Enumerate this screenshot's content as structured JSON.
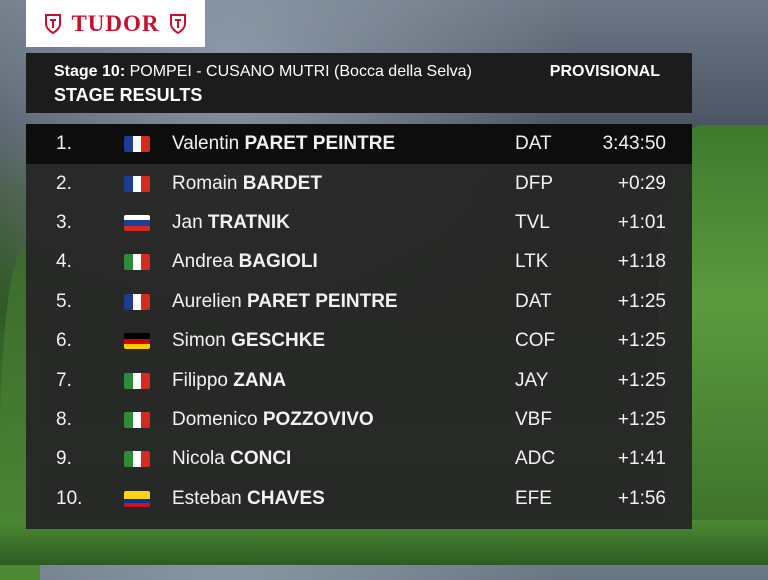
{
  "brand": {
    "wordmark": "TUDOR",
    "shield_color": "#c8102e"
  },
  "header": {
    "stage_label": "Stage 10:",
    "route": "POMPEI - CUSANO MUTRI (Bocca della Selva)",
    "status": "PROVISIONAL",
    "title": "STAGE RESULTS"
  },
  "results": [
    {
      "pos": "1.",
      "first": "Valentin",
      "last": "PARET PEINTRE",
      "team": "DAT",
      "time": "3:43:50",
      "flag": {
        "dir": "v",
        "colors": [
          "#1d3c8f",
          "#ffffff",
          "#d52b1e"
        ]
      }
    },
    {
      "pos": "2.",
      "first": "Romain",
      "last": "BARDET",
      "team": "DFP",
      "time": "+0:29",
      "flag": {
        "dir": "v",
        "colors": [
          "#1d3c8f",
          "#ffffff",
          "#d52b1e"
        ]
      }
    },
    {
      "pos": "3.",
      "first": "Jan",
      "last": "TRATNIK",
      "team": "TVL",
      "time": "+1:01",
      "flag": {
        "dir": "h",
        "colors": [
          "#ffffff",
          "#1e3f9e",
          "#d52b1e"
        ]
      }
    },
    {
      "pos": "4.",
      "first": "Andrea",
      "last": "BAGIOLI",
      "team": "LTK",
      "time": "+1:18",
      "flag": {
        "dir": "v",
        "colors": [
          "#2e8b3a",
          "#ffffff",
          "#d52b1e"
        ]
      }
    },
    {
      "pos": "5.",
      "first": "Aurelien",
      "last": "PARET PEINTRE",
      "team": "DAT",
      "time": "+1:25",
      "flag": {
        "dir": "v",
        "colors": [
          "#1d3c8f",
          "#ffffff",
          "#d52b1e"
        ]
      }
    },
    {
      "pos": "6.",
      "first": "Simon",
      "last": "GESCHKE",
      "team": "COF",
      "time": "+1:25",
      "flag": {
        "dir": "h",
        "colors": [
          "#000000",
          "#d00000",
          "#ffcc00"
        ]
      }
    },
    {
      "pos": "7.",
      "first": "Filippo",
      "last": "ZANA",
      "team": "JAY",
      "time": "+1:25",
      "flag": {
        "dir": "v",
        "colors": [
          "#2e8b3a",
          "#ffffff",
          "#d52b1e"
        ]
      }
    },
    {
      "pos": "8.",
      "first": "Domenico",
      "last": "POZZOVIVO",
      "team": "VBF",
      "time": "+1:25",
      "flag": {
        "dir": "v",
        "colors": [
          "#2e8b3a",
          "#ffffff",
          "#d52b1e"
        ]
      }
    },
    {
      "pos": "9.",
      "first": "Nicola",
      "last": "CONCI",
      "team": "ADC",
      "time": "+1:41",
      "flag": {
        "dir": "v",
        "colors": [
          "#2e8b3a",
          "#ffffff",
          "#d52b1e"
        ]
      }
    },
    {
      "pos": "10.",
      "first": "Esteban",
      "last": "CHAVES",
      "team": "EFE",
      "time": "+1:56",
      "flag": {
        "dir": "h",
        "colors": [
          "#fcd116",
          "#fcd116",
          "#003893",
          "#ce1126"
        ]
      }
    }
  ]
}
